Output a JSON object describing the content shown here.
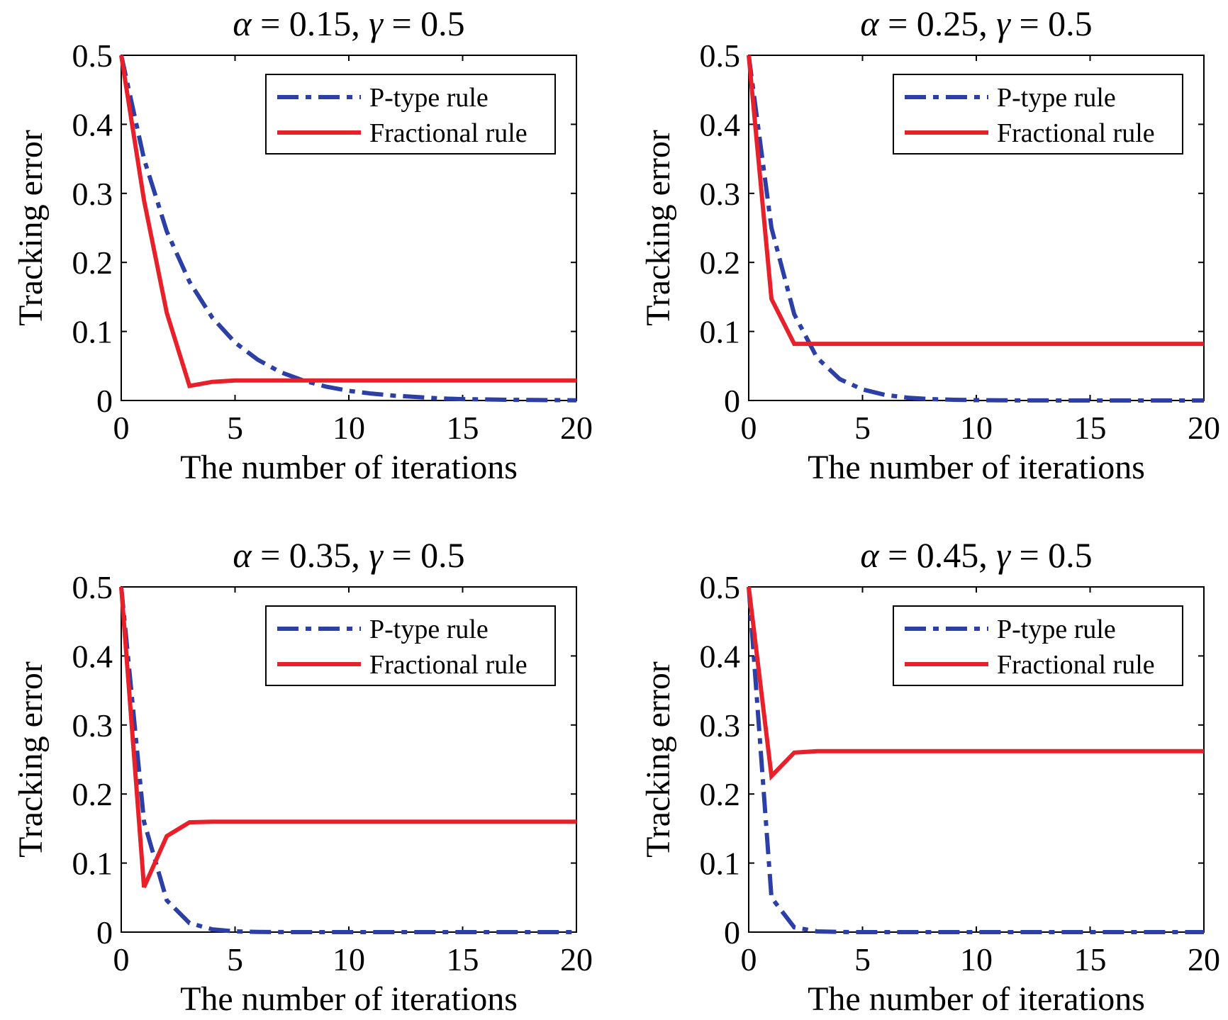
{
  "colors": {
    "p_type": "#2b3fa6",
    "fractional": "#e8202a"
  },
  "chart_data": [
    {
      "type": "line",
      "title": {
        "pre": "α",
        "mid": " = 0.15, ",
        "gamma": "γ",
        "post": " = 0.5"
      },
      "xlabel": "The number of iterations",
      "ylabel": "Tracking error",
      "xlim": [
        0,
        20
      ],
      "ylim": [
        0,
        0.5
      ],
      "xticks": [
        "0",
        "5",
        "10",
        "15",
        "20"
      ],
      "yticks": [
        "0",
        "0.1",
        "0.2",
        "0.3",
        "0.4",
        "0.5"
      ],
      "legend_position": "top-right",
      "series": [
        {
          "name": "P-type rule",
          "style": "dashdot",
          "color": "#2b3fa6",
          "x": [
            0,
            1,
            2,
            3,
            4,
            5,
            6,
            7,
            8,
            9,
            10,
            11,
            12,
            13,
            14,
            15,
            16,
            17,
            18,
            19,
            20
          ],
          "y": [
            0.5,
            0.35,
            0.245,
            0.172,
            0.12,
            0.084,
            0.059,
            0.041,
            0.029,
            0.02,
            0.014,
            0.01,
            0.007,
            0.005,
            0.003,
            0.002,
            0.0015,
            0.001,
            0.0007,
            0.0005,
            0.0003
          ]
        },
        {
          "name": "Fractional rule",
          "style": "solid",
          "color": "#e8202a",
          "x": [
            0,
            1,
            2,
            3,
            4,
            5,
            6,
            7,
            8,
            9,
            10,
            11,
            12,
            13,
            14,
            15,
            16,
            17,
            18,
            19,
            20
          ],
          "y": [
            0.5,
            0.29,
            0.127,
            0.021,
            0.027,
            0.029,
            0.029,
            0.029,
            0.029,
            0.029,
            0.029,
            0.029,
            0.029,
            0.029,
            0.029,
            0.029,
            0.029,
            0.029,
            0.029,
            0.029,
            0.029
          ]
        }
      ]
    },
    {
      "type": "line",
      "title": {
        "pre": "α",
        "mid": " = 0.25, ",
        "gamma": "γ",
        "post": " = 0.5"
      },
      "xlabel": "The number of iterations",
      "ylabel": "Tracking error",
      "xlim": [
        0,
        20
      ],
      "ylim": [
        0,
        0.5
      ],
      "xticks": [
        "0",
        "5",
        "10",
        "15",
        "20"
      ],
      "yticks": [
        "0",
        "0.1",
        "0.2",
        "0.3",
        "0.4",
        "0.5"
      ],
      "legend_position": "top-right",
      "series": [
        {
          "name": "P-type rule",
          "style": "dashdot",
          "color": "#2b3fa6",
          "x": [
            0,
            1,
            2,
            3,
            4,
            5,
            6,
            7,
            8,
            9,
            10,
            11,
            12,
            13,
            14,
            15,
            16,
            17,
            18,
            19,
            20
          ],
          "y": [
            0.5,
            0.25,
            0.125,
            0.062,
            0.031,
            0.016,
            0.008,
            0.004,
            0.002,
            0.001,
            0.0005,
            0.0003,
            0.0001,
            0.0001,
            0,
            0,
            0,
            0,
            0,
            0,
            0
          ]
        },
        {
          "name": "Fractional rule",
          "style": "solid",
          "color": "#e8202a",
          "x": [
            0,
            1,
            2,
            3,
            4,
            5,
            6,
            7,
            8,
            9,
            10,
            11,
            12,
            13,
            14,
            15,
            16,
            17,
            18,
            19,
            20
          ],
          "y": [
            0.5,
            0.147,
            0.082,
            0.082,
            0.082,
            0.082,
            0.082,
            0.082,
            0.082,
            0.082,
            0.082,
            0.082,
            0.082,
            0.082,
            0.082,
            0.082,
            0.082,
            0.082,
            0.082,
            0.082,
            0.082
          ]
        }
      ]
    },
    {
      "type": "line",
      "title": {
        "pre": "α",
        "mid": " = 0.35, ",
        "gamma": "γ",
        "post": " = 0.5"
      },
      "xlabel": "The number of iterations",
      "ylabel": "Tracking error",
      "xlim": [
        0,
        20
      ],
      "ylim": [
        0,
        0.5
      ],
      "xticks": [
        "0",
        "5",
        "10",
        "15",
        "20"
      ],
      "yticks": [
        "0",
        "0.1",
        "0.2",
        "0.3",
        "0.4",
        "0.5"
      ],
      "legend_position": "top-right",
      "series": [
        {
          "name": "P-type rule",
          "style": "dashdot",
          "color": "#2b3fa6",
          "x": [
            0,
            1,
            2,
            3,
            4,
            5,
            6,
            7,
            8,
            9,
            10,
            11,
            12,
            13,
            14,
            15,
            16,
            17,
            18,
            19,
            20
          ],
          "y": [
            0.5,
            0.16,
            0.046,
            0.013,
            0.004,
            0.001,
            0.0003,
            0.0001,
            0,
            0,
            0,
            0,
            0,
            0,
            0,
            0,
            0,
            0,
            0,
            0,
            0
          ]
        },
        {
          "name": "Fractional rule",
          "style": "solid",
          "color": "#e8202a",
          "x": [
            0,
            1,
            2,
            3,
            4,
            5,
            6,
            7,
            8,
            9,
            10,
            11,
            12,
            13,
            14,
            15,
            16,
            17,
            18,
            19,
            20
          ],
          "y": [
            0.5,
            0.065,
            0.139,
            0.159,
            0.16,
            0.16,
            0.16,
            0.16,
            0.16,
            0.16,
            0.16,
            0.16,
            0.16,
            0.16,
            0.16,
            0.16,
            0.16,
            0.16,
            0.16,
            0.16,
            0.16
          ]
        }
      ]
    },
    {
      "type": "line",
      "title": {
        "pre": "α",
        "mid": " = 0.45, ",
        "gamma": "γ",
        "post": " = 0.5"
      },
      "xlabel": "The number of iterations",
      "ylabel": "Tracking error",
      "xlim": [
        0,
        20
      ],
      "ylim": [
        0,
        0.5
      ],
      "xticks": [
        "0",
        "5",
        "10",
        "15",
        "20"
      ],
      "yticks": [
        "0",
        "0.1",
        "0.2",
        "0.3",
        "0.4",
        "0.5"
      ],
      "legend_position": "top-right",
      "series": [
        {
          "name": "P-type rule",
          "style": "dashdot",
          "color": "#2b3fa6",
          "x": [
            0,
            1,
            2,
            3,
            4,
            5,
            6,
            7,
            8,
            9,
            10,
            11,
            12,
            13,
            14,
            15,
            16,
            17,
            18,
            19,
            20
          ],
          "y": [
            0.5,
            0.05,
            0.007,
            0.001,
            0.0002,
            0,
            0,
            0,
            0,
            0,
            0,
            0,
            0,
            0,
            0,
            0,
            0,
            0,
            0,
            0,
            0
          ]
        },
        {
          "name": "Fractional rule",
          "style": "solid",
          "color": "#e8202a",
          "x": [
            0,
            1,
            2,
            3,
            4,
            5,
            6,
            7,
            8,
            9,
            10,
            11,
            12,
            13,
            14,
            15,
            16,
            17,
            18,
            19,
            20
          ],
          "y": [
            0.5,
            0.226,
            0.26,
            0.262,
            0.262,
            0.262,
            0.262,
            0.262,
            0.262,
            0.262,
            0.262,
            0.262,
            0.262,
            0.262,
            0.262,
            0.262,
            0.262,
            0.262,
            0.262,
            0.262,
            0.262
          ]
        }
      ]
    }
  ]
}
